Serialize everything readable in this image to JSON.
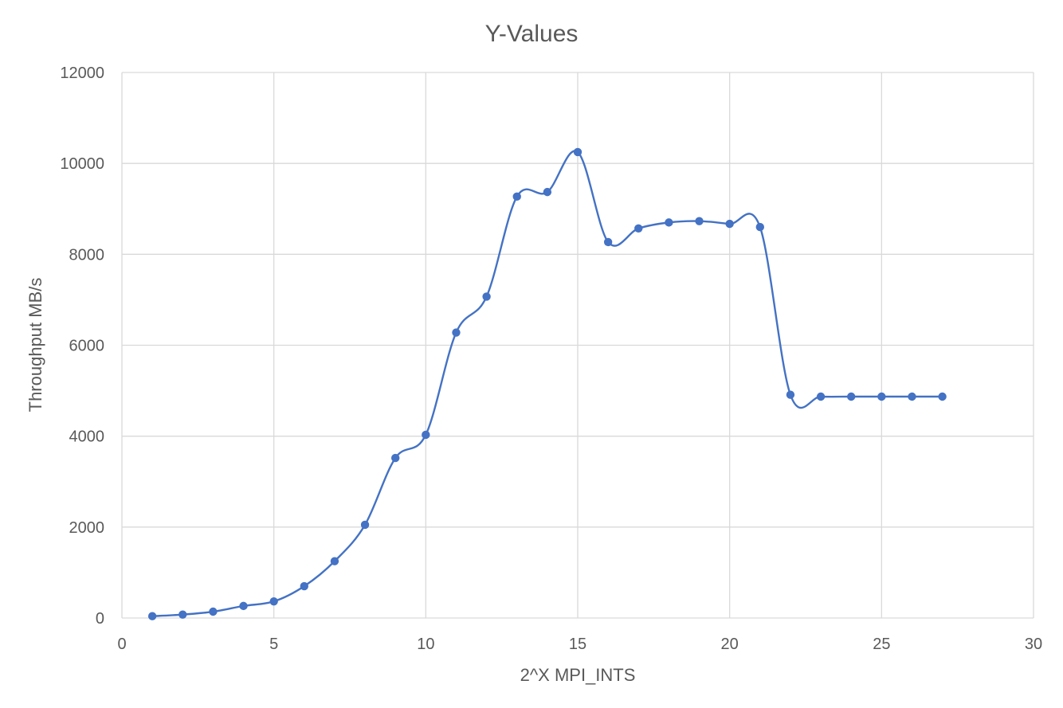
{
  "chart_data": {
    "type": "scatter",
    "title": "Y-Values",
    "xlabel": "2^X MPI_INTS",
    "ylabel": "Throughput MB/s",
    "xlim": [
      0,
      30
    ],
    "ylim": [
      0,
      12000
    ],
    "x_ticks": [
      0,
      5,
      10,
      15,
      20,
      25,
      30
    ],
    "y_ticks": [
      0,
      2000,
      4000,
      6000,
      8000,
      10000,
      12000
    ],
    "grid": true,
    "smooth_line": true,
    "colors": {
      "series": "#4472c4",
      "grid": "#d9d9d9",
      "text": "#595959"
    },
    "series": [
      {
        "x": [
          1,
          2,
          3,
          4,
          5,
          6,
          7,
          8,
          9,
          10,
          11,
          12,
          13,
          14,
          15,
          16,
          17,
          18,
          19,
          20,
          21,
          22,
          23,
          24,
          25,
          26,
          27
        ],
        "y": [
          40,
          75,
          140,
          265,
          365,
          700,
          1250,
          2050,
          3520,
          4030,
          6280,
          7070,
          9270,
          9370,
          10250,
          8270,
          8570,
          8700,
          8730,
          8670,
          8600,
          4910,
          4870,
          4870,
          4870,
          4870,
          4870
        ]
      }
    ]
  }
}
